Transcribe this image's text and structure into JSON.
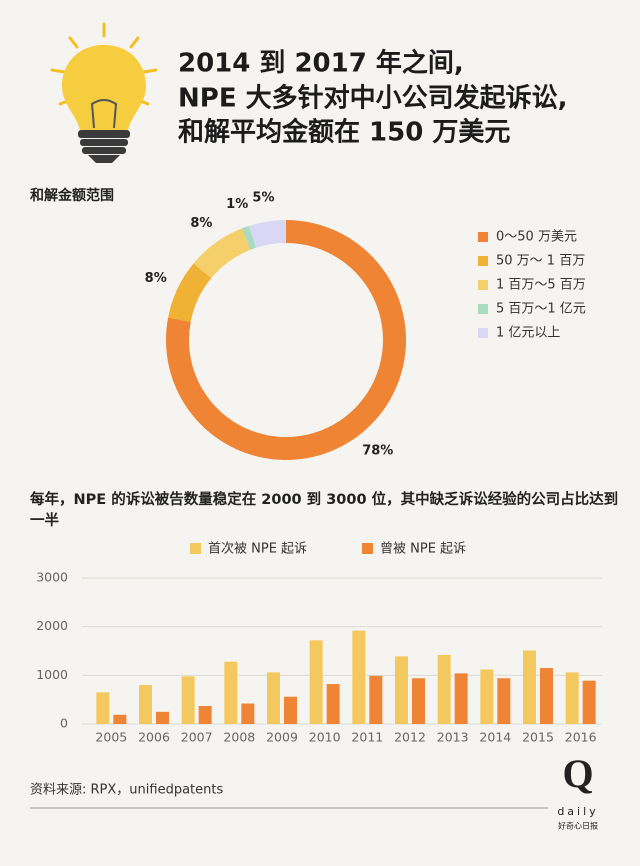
{
  "header": {
    "title": [
      "2014 到 2017 年之间,",
      "NPE 大多针对中小公司发起诉讼,",
      "和解平均金额在 150 万美元"
    ]
  },
  "chart_data": [
    {
      "type": "pie",
      "title": "和解金额范围",
      "categories": [
        "0～50 万美元",
        "50 万～ 1 百万",
        "1 百万～5 百万",
        "5 百万～1 亿元",
        "1 亿元以上"
      ],
      "values": [
        78,
        8,
        8,
        1,
        5
      ],
      "value_labels": [
        "78%",
        "8%",
        "8%",
        "1%",
        "5%"
      ],
      "colors": [
        "#ee8434",
        "#f0b234",
        "#f5cf6a",
        "#a8dcc0",
        "#d8d8f6"
      ],
      "legend": "right"
    },
    {
      "type": "bar",
      "title": "每年，NPE 的诉讼被告数量稳定在 2000 到 3000 位，其中缺乏诉讼经验的公司占比达到一半",
      "categories": [
        "2005",
        "2006",
        "2007",
        "2008",
        "2009",
        "2010",
        "2011",
        "2012",
        "2013",
        "2014",
        "2015",
        "2016"
      ],
      "series": [
        {
          "name": "首次被 NPE 起诉",
          "color": "#f3c85e",
          "values": [
            650,
            800,
            980,
            1280,
            1060,
            1720,
            1920,
            1390,
            1420,
            1120,
            1510,
            1060
          ]
        },
        {
          "name": "曾被 NPE 起诉",
          "color": "#ee8434",
          "values": [
            190,
            250,
            370,
            420,
            560,
            820,
            990,
            940,
            1040,
            940,
            1150,
            890
          ]
        }
      ],
      "ylim": [
        0,
        3000
      ],
      "yticks": [
        0,
        1000,
        2000,
        3000
      ],
      "grid": true,
      "legend": "top"
    }
  ],
  "footer": {
    "source": "资料来源: RPX，unifiedpatents",
    "logo": "Q",
    "logo_word": "daily",
    "logo_name": "好奇心日报"
  }
}
